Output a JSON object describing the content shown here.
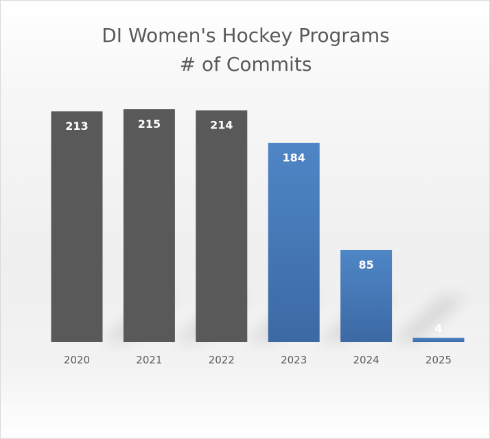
{
  "chart_data": {
    "type": "bar",
    "title_lines": [
      "DI Women's Hockey Programs",
      "# of Commits"
    ],
    "categories": [
      "2020",
      "2021",
      "2022",
      "2023",
      "2024",
      "2025"
    ],
    "values": [
      213,
      215,
      214,
      184,
      85,
      4
    ],
    "bar_colors": [
      "#595959",
      "#595959",
      "#595959",
      "#4f81bd",
      "#4f81bd",
      "#4f81bd"
    ],
    "xlabel": "",
    "ylabel": "",
    "ylim": [
      0,
      215
    ],
    "grid": false,
    "legend": "none",
    "data_labels": true
  }
}
